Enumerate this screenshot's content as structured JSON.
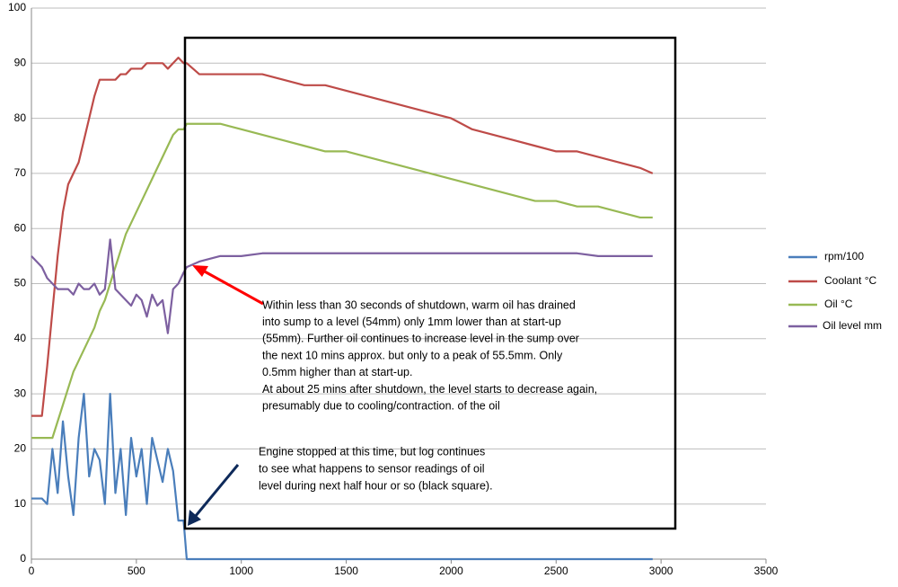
{
  "chart_data": {
    "type": "line",
    "x": [
      0,
      25,
      50,
      75,
      100,
      125,
      150,
      175,
      200,
      225,
      250,
      275,
      300,
      325,
      350,
      375,
      400,
      425,
      450,
      475,
      500,
      525,
      550,
      575,
      600,
      625,
      650,
      675,
      700,
      725,
      740,
      800,
      900,
      1000,
      1100,
      1200,
      1300,
      1400,
      1500,
      1600,
      1700,
      1800,
      1900,
      2000,
      2100,
      2200,
      2300,
      2400,
      2500,
      2600,
      2700,
      2800,
      2900,
      2960
    ],
    "series": [
      {
        "name": "rpm/100",
        "color": "#4a7ebb",
        "values": [
          11,
          11,
          11,
          10,
          20,
          12,
          25,
          15,
          8,
          22,
          30,
          15,
          20,
          18,
          10,
          30,
          12,
          20,
          8,
          22,
          15,
          20,
          10,
          22,
          18,
          14,
          20,
          16,
          7,
          7,
          0,
          0,
          0,
          0,
          0,
          0,
          0,
          0,
          0,
          0,
          0,
          0,
          0,
          0,
          0,
          0,
          0,
          0,
          0,
          0,
          0,
          0,
          0,
          0
        ]
      },
      {
        "name": "Coolant °C",
        "color": "#be4b48",
        "values": [
          26,
          26,
          26,
          35,
          45,
          55,
          63,
          68,
          70,
          72,
          76,
          80,
          84,
          87,
          87,
          87,
          87,
          88,
          88,
          89,
          89,
          89,
          90,
          90,
          90,
          90,
          89,
          90,
          91,
          90,
          90,
          88,
          88,
          88,
          88,
          87,
          86,
          86,
          85,
          84,
          83,
          82,
          81,
          80,
          78,
          77,
          76,
          75,
          74,
          74,
          73,
          72,
          71,
          70
        ]
      },
      {
        "name": "Oil °C",
        "color": "#98b954",
        "values": [
          22,
          22,
          22,
          22,
          22,
          25,
          28,
          31,
          34,
          36,
          38,
          40,
          42,
          45,
          47,
          50,
          53,
          56,
          59,
          61,
          63,
          65,
          67,
          69,
          71,
          73,
          75,
          77,
          78,
          78,
          79,
          79,
          79,
          78,
          77,
          76,
          75,
          74,
          74,
          73,
          72,
          71,
          70,
          69,
          68,
          67,
          66,
          65,
          65,
          64,
          64,
          63,
          62,
          62
        ]
      },
      {
        "name": "Oil level mm",
        "color": "#7d60a0",
        "values": [
          55,
          54,
          53,
          51,
          50,
          49,
          49,
          49,
          48,
          50,
          49,
          49,
          50,
          48,
          49,
          58,
          49,
          48,
          47,
          46,
          48,
          47,
          44,
          48,
          46,
          47,
          41,
          49,
          50,
          52,
          53,
          54,
          55,
          55,
          55.5,
          55.5,
          55.5,
          55.5,
          55.5,
          55.5,
          55.5,
          55.5,
          55.5,
          55.5,
          55.5,
          55.5,
          55.5,
          55.5,
          55.5,
          55.5,
          55,
          55,
          55,
          55
        ]
      }
    ],
    "xlim": [
      0,
      3500
    ],
    "xticks": [
      0,
      500,
      1000,
      1500,
      2000,
      2500,
      3000,
      3500
    ],
    "ylim": [
      0,
      100
    ],
    "yticks": [
      0,
      10,
      20,
      30,
      40,
      50,
      60,
      70,
      80,
      90,
      100
    ],
    "grid": true,
    "legend": "right",
    "annotations": [
      {
        "lines": [
          "Within less than 30 seconds of shutdown,  warm oil has drained",
          "into sump to a level (54mm) only 1mm lower than at start-up",
          "(55mm).  Further oil continues to increase level in the sump  over",
          "the next  10 mins approx. but only to a peak of 55.5mm.  Only",
          "0.5mm higher than  at start-up.",
          "At about 25 mins after shutdown, the level starts to decrease again,",
          "presumably due to  cooling/contraction. of the oil"
        ]
      },
      {
        "lines": [
          "Engine stopped  at this time, but log continues",
          "to see what happens to sensor readings of oil",
          "level during next half hour or so  (black square)."
        ]
      }
    ]
  }
}
